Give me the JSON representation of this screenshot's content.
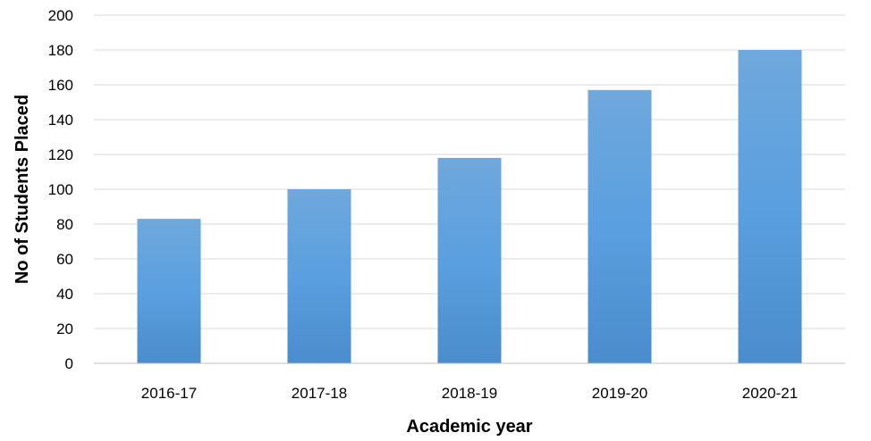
{
  "chart_data": {
    "type": "bar",
    "categories": [
      "2016-17",
      "2017-18",
      "2018-19",
      "2019-20",
      "2020-21"
    ],
    "values": [
      83,
      100,
      118,
      157,
      180
    ],
    "xlabel": "Academic year",
    "ylabel": "No of Students Placed",
    "ylim": [
      0,
      200
    ],
    "yticks": [
      0,
      20,
      40,
      60,
      80,
      100,
      120,
      140,
      160,
      180,
      200
    ],
    "grid": true,
    "legend": "none"
  },
  "colors": {
    "bar_top": "#6fa8dc",
    "bar_bottom": "#4a8ccc",
    "grid": "#d9d9d9",
    "axis": "#bfbfbf"
  }
}
